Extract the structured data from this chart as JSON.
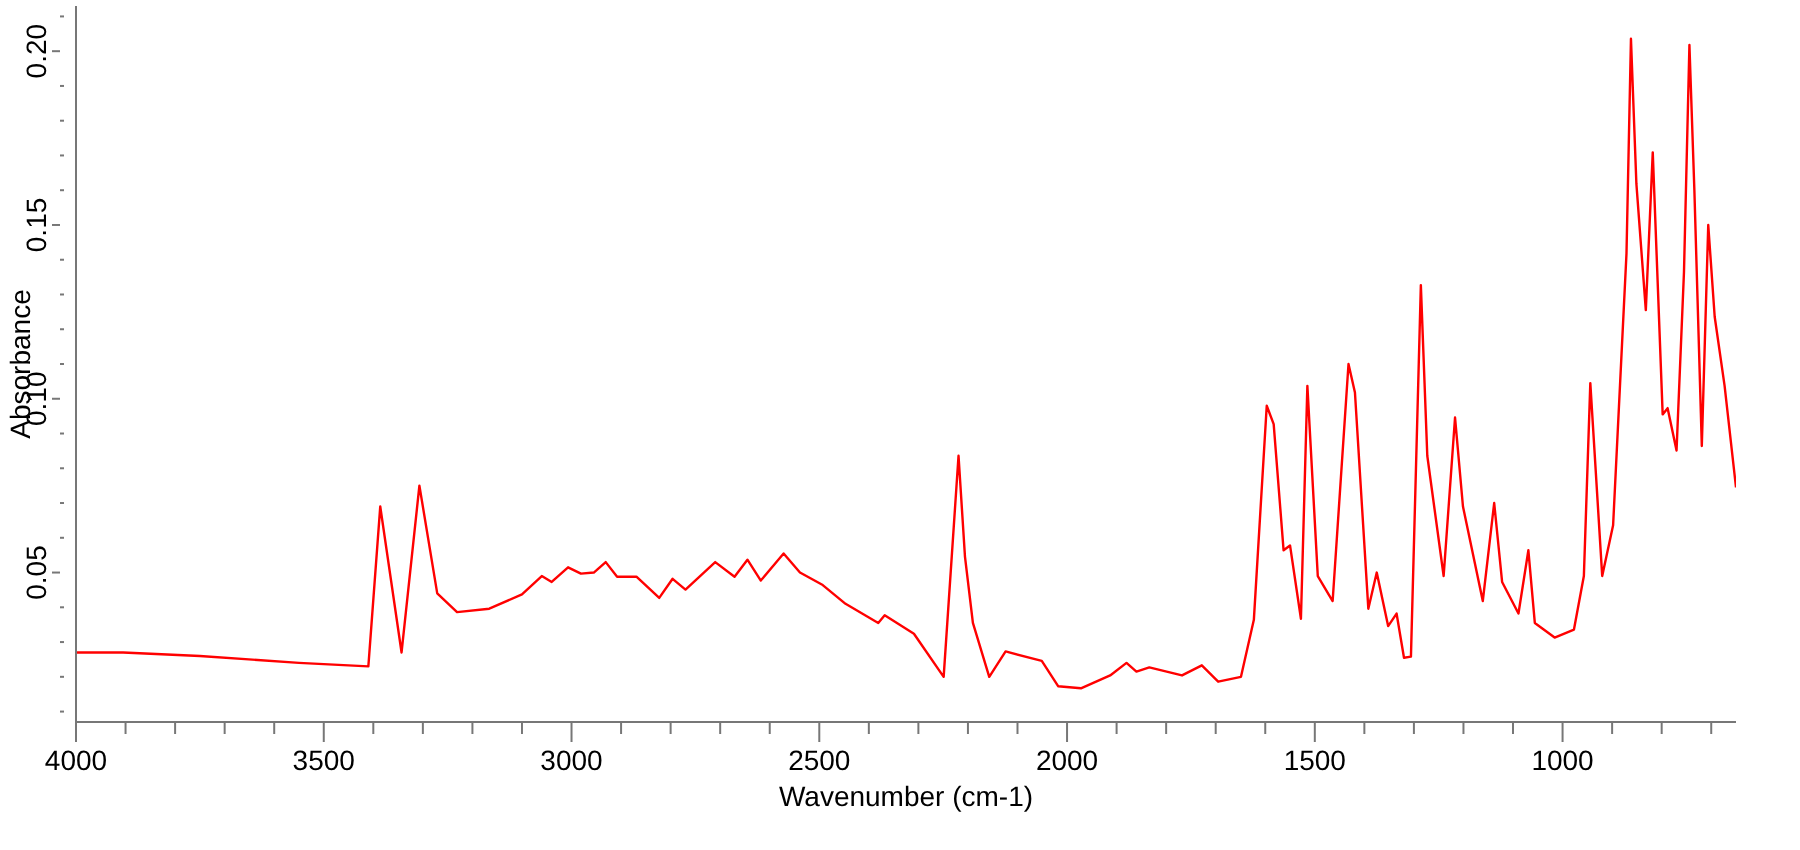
{
  "chart_data": {
    "type": "line",
    "xlabel": "Wavenumber (cm-1)",
    "ylabel": "Absorbance",
    "xlim": [
      4000,
      650
    ],
    "ylim": [
      0.007,
      0.213
    ],
    "xticks": [
      4000,
      {
        "value": 3900,
        "label": null
      },
      {
        "value": 3800,
        "label": null
      },
      {
        "value": 3700,
        "label": null
      },
      {
        "value": 3600,
        "label": null
      },
      3500,
      {
        "value": 3400,
        "label": null
      },
      {
        "value": 3300,
        "label": null
      },
      {
        "value": 3200,
        "label": null
      },
      {
        "value": 3100,
        "label": null
      },
      3000,
      {
        "value": 2900,
        "label": null
      },
      {
        "value": 2800,
        "label": null
      },
      {
        "value": 2700,
        "label": null
      },
      {
        "value": 2600,
        "label": null
      },
      2500,
      {
        "value": 2400,
        "label": null
      },
      {
        "value": 2300,
        "label": null
      },
      {
        "value": 2200,
        "label": null
      },
      {
        "value": 2100,
        "label": null
      },
      2000,
      {
        "value": 1900,
        "label": null
      },
      {
        "value": 1800,
        "label": null
      },
      {
        "value": 1700,
        "label": null
      },
      {
        "value": 1600,
        "label": null
      },
      1500,
      {
        "value": 1400,
        "label": null
      },
      {
        "value": 1300,
        "label": null
      },
      {
        "value": 1200,
        "label": null
      },
      {
        "value": 1100,
        "label": null
      },
      1000,
      {
        "value": 900,
        "label": null
      },
      {
        "value": 800,
        "label": null
      },
      {
        "value": 700,
        "label": null
      }
    ],
    "yticks": [
      {
        "value": 0.01,
        "label": null
      },
      {
        "value": 0.02,
        "label": null
      },
      {
        "value": 0.03,
        "label": null
      },
      {
        "value": 0.04,
        "label": null
      },
      {
        "value": 0.05,
        "label": "0.05"
      },
      {
        "value": 0.06,
        "label": null
      },
      {
        "value": 0.07,
        "label": null
      },
      {
        "value": 0.08,
        "label": null
      },
      {
        "value": 0.09,
        "label": null
      },
      {
        "value": 0.1,
        "label": "0.10"
      },
      {
        "value": 0.11,
        "label": null
      },
      {
        "value": 0.12,
        "label": null
      },
      {
        "value": 0.13,
        "label": null
      },
      {
        "value": 0.14,
        "label": null
      },
      {
        "value": 0.15,
        "label": "0.15"
      },
      {
        "value": 0.16,
        "label": null
      },
      {
        "value": 0.17,
        "label": null
      },
      {
        "value": 0.18,
        "label": null
      },
      {
        "value": 0.19,
        "label": null
      },
      {
        "value": 0.2,
        "label": "0.20"
      },
      {
        "value": 0.21,
        "label": null
      }
    ],
    "series": [
      {
        "color": "#ff0000",
        "x": [
          4000,
          3905,
          3750,
          3550,
          3410,
          3386,
          3343,
          3307,
          3271,
          3231,
          3166,
          3100,
          3060,
          3040,
          3007,
          2981,
          2955,
          2931,
          2908,
          2869,
          2823,
          2796,
          2770,
          2710,
          2671,
          2645,
          2618,
          2572,
          2539,
          2493,
          2447,
          2381,
          2368,
          2309,
          2249,
          2219,
          2206,
          2190,
          2157,
          2124,
          2051,
          2018,
          1972,
          1913,
          1880,
          1860,
          1834,
          1768,
          1728,
          1695,
          1649,
          1623,
          1597,
          1583,
          1563,
          1550,
          1528,
          1515,
          1494,
          1464,
          1432,
          1419,
          1392,
          1375,
          1352,
          1335,
          1320,
          1306,
          1286,
          1273,
          1240,
          1217,
          1201,
          1161,
          1138,
          1122,
          1089,
          1069,
          1056,
          1016,
          977,
          957,
          944,
          920,
          898,
          871,
          862,
          851,
          832,
          818,
          798,
          788,
          770,
          755,
          744,
          734,
          719,
          706,
          693,
          673,
          650
        ],
        "values": [
          0.027,
          0.027,
          0.026,
          0.024,
          0.023,
          0.069,
          0.027,
          0.075,
          0.044,
          0.0386,
          0.0396,
          0.0437,
          0.049,
          0.0473,
          0.0515,
          0.0497,
          0.05,
          0.053,
          0.0488,
          0.0488,
          0.0427,
          0.0482,
          0.0451,
          0.053,
          0.0488,
          0.0537,
          0.0477,
          0.0555,
          0.05,
          0.0464,
          0.041,
          0.0355,
          0.0377,
          0.0324,
          0.02,
          0.0836,
          0.0546,
          0.0355,
          0.02,
          0.0273,
          0.0246,
          0.0173,
          0.0167,
          0.0204,
          0.024,
          0.0215,
          0.0227,
          0.0204,
          0.0233,
          0.0186,
          0.02,
          0.0364,
          0.098,
          0.0927,
          0.0564,
          0.0578,
          0.0367,
          0.1037,
          0.049,
          0.0418,
          0.11,
          0.1018,
          0.0396,
          0.05,
          0.0346,
          0.0382,
          0.0255,
          0.0258,
          0.1327,
          0.0836,
          0.049,
          0.0946,
          0.069,
          0.0418,
          0.07,
          0.0473,
          0.0382,
          0.0564,
          0.0355,
          0.0313,
          0.0336,
          0.049,
          0.1045,
          0.049,
          0.0636,
          0.1418,
          0.2036,
          0.1618,
          0.1255,
          0.1709,
          0.0955,
          0.0973,
          0.0851,
          0.1364,
          0.2018,
          0.16,
          0.0864,
          0.15,
          0.1236,
          0.1037,
          0.0745
        ]
      }
    ]
  }
}
